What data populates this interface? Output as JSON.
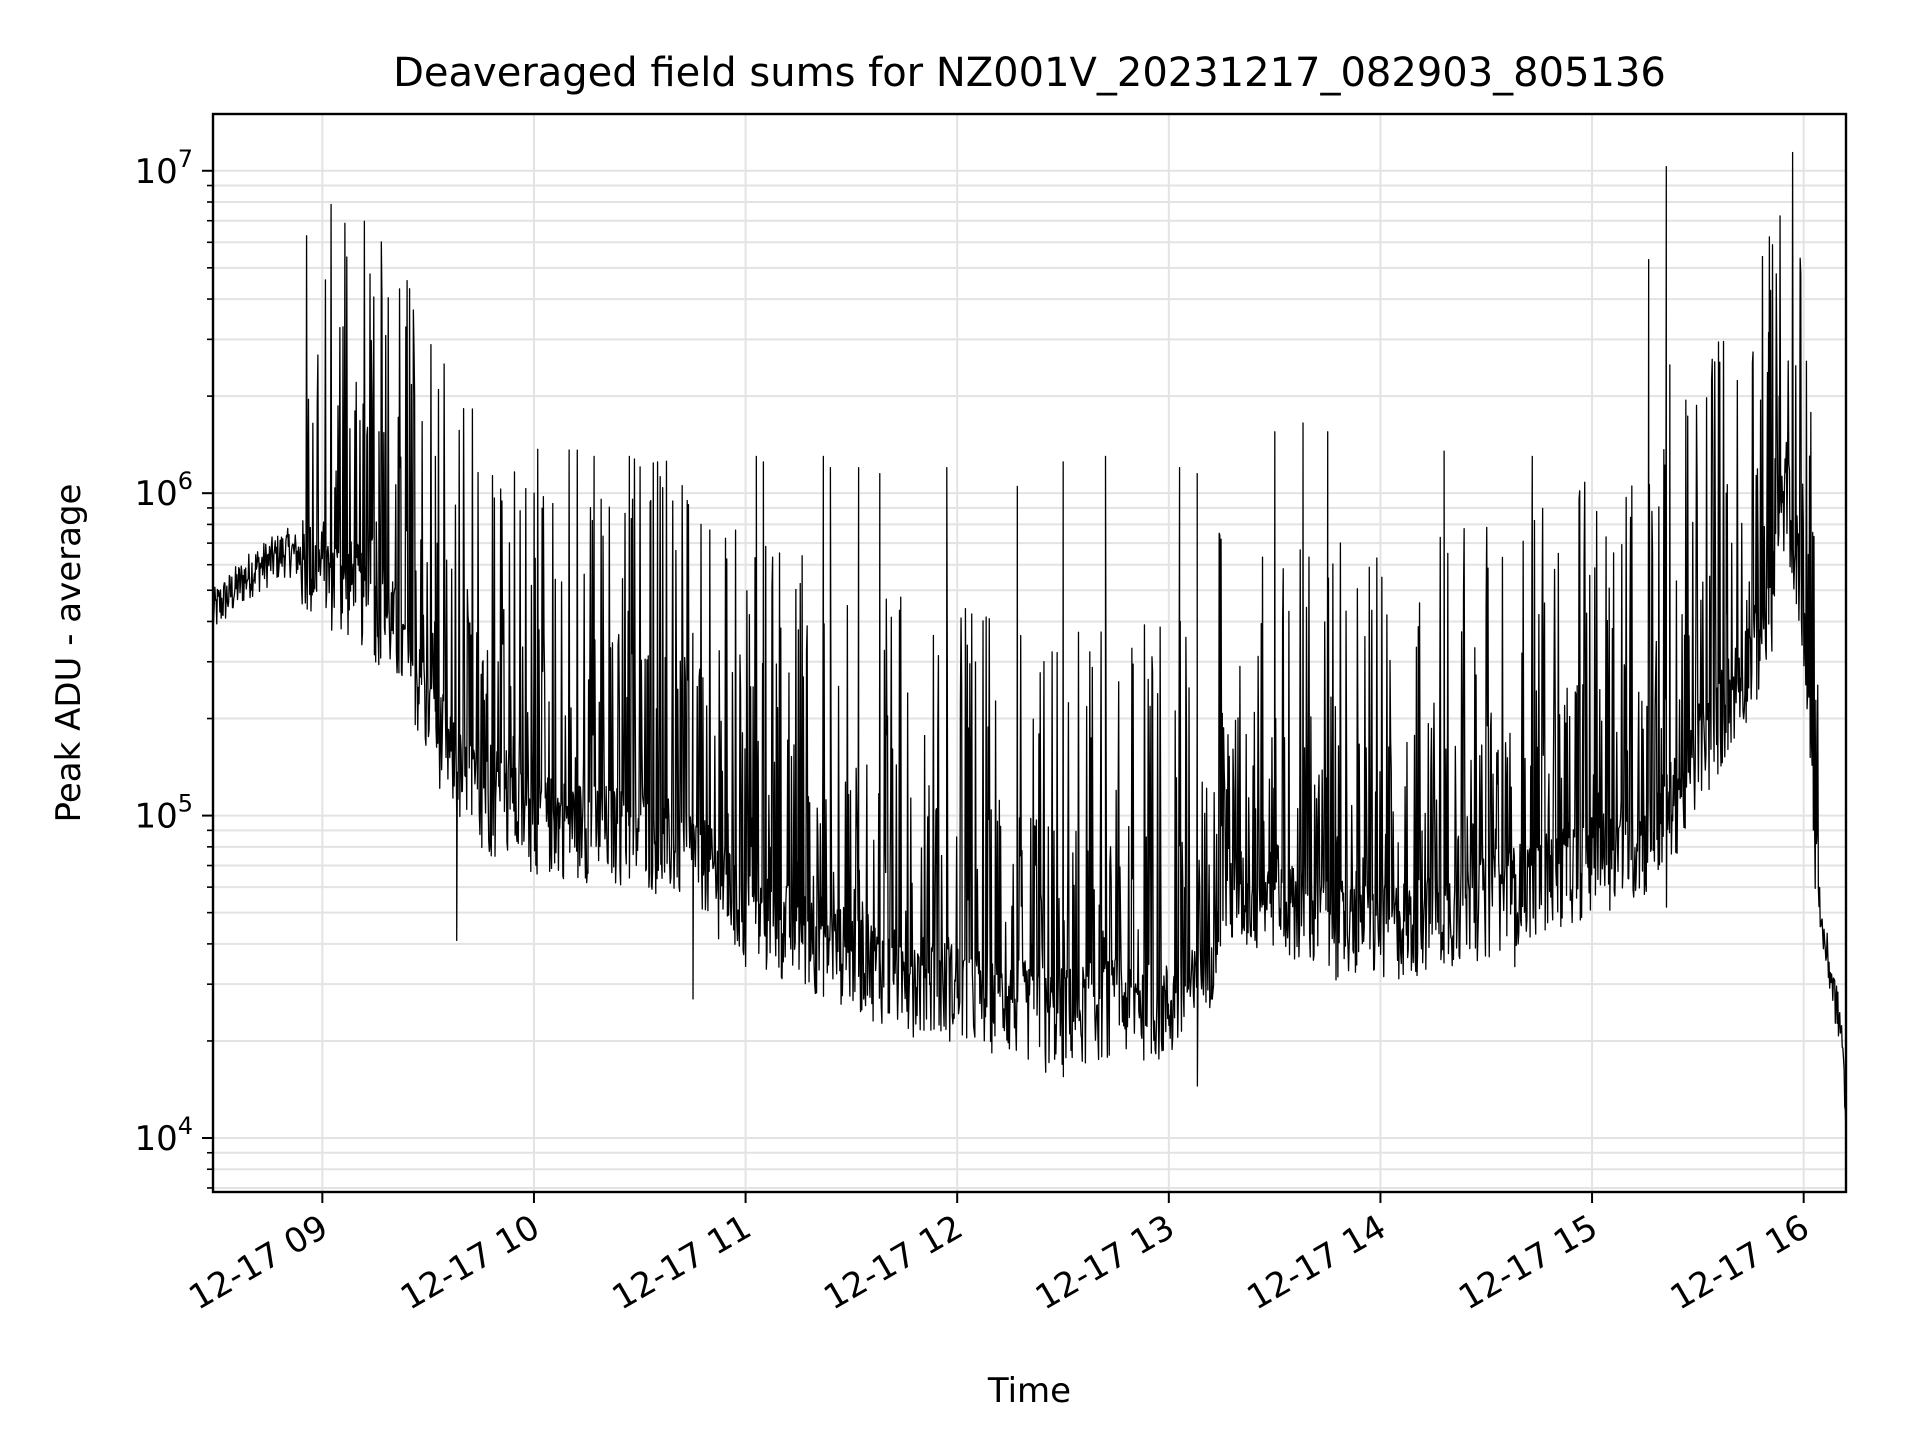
{
  "chart_data": {
    "type": "line",
    "title": "Deaveraged field sums for NZ001V_20231217_082903_805136",
    "xlabel": "Time",
    "ylabel": "Peak ADU - average",
    "yscale": "log",
    "ylim": [
      6800,
      15000000
    ],
    "xlim": [
      "2023-12-17 08:29",
      "2023-12-17 16:12"
    ],
    "grid": true,
    "line_color": "#000000",
    "x_ticks": [
      {
        "value": "2023-12-17 09:00",
        "label": "12-17 09"
      },
      {
        "value": "2023-12-17 10:00",
        "label": "12-17 10"
      },
      {
        "value": "2023-12-17 11:00",
        "label": "12-17 11"
      },
      {
        "value": "2023-12-17 12:00",
        "label": "12-17 12"
      },
      {
        "value": "2023-12-17 13:00",
        "label": "12-17 13"
      },
      {
        "value": "2023-12-17 14:00",
        "label": "12-17 14"
      },
      {
        "value": "2023-12-17 15:00",
        "label": "12-17 15"
      },
      {
        "value": "2023-12-17 16:00",
        "label": "12-17 16"
      }
    ],
    "y_ticks": [
      {
        "value": 10000,
        "base": "10",
        "exp": "4"
      },
      {
        "value": 100000,
        "base": "10",
        "exp": "5"
      },
      {
        "value": 1000000,
        "base": "10",
        "exp": "6"
      },
      {
        "value": 10000000,
        "base": "10",
        "exp": "7"
      }
    ],
    "series": [
      {
        "baseline": [
          [
            "2023-12-17 08:29",
            420000
          ],
          [
            "2023-12-17 08:40",
            560000
          ],
          [
            "2023-12-17 08:50",
            650000
          ],
          [
            "2023-12-17 09:00",
            580000
          ],
          [
            "2023-12-17 09:10",
            520000
          ],
          [
            "2023-12-17 09:20",
            400000
          ],
          [
            "2023-12-17 09:30",
            220000
          ],
          [
            "2023-12-17 09:40",
            130000
          ],
          [
            "2023-12-17 09:50",
            110000
          ],
          [
            "2023-12-17 10:00",
            100000
          ],
          [
            "2023-12-17 10:15",
            95000
          ],
          [
            "2023-12-17 10:30",
            90000
          ],
          [
            "2023-12-17 10:45",
            80000
          ],
          [
            "2023-12-17 11:00",
            50000
          ],
          [
            "2023-12-17 11:15",
            45000
          ],
          [
            "2023-12-17 11:30",
            38000
          ],
          [
            "2023-12-17 11:45",
            32000
          ],
          [
            "2023-12-17 12:00",
            30000
          ],
          [
            "2023-12-17 12:15",
            27000
          ],
          [
            "2023-12-17 12:30",
            25000
          ],
          [
            "2023-12-17 12:45",
            27000
          ],
          [
            "2023-12-17 13:00",
            26000
          ],
          [
            "2023-12-17 13:10",
            30000
          ],
          [
            "2023-12-17 13:15",
            60000
          ],
          [
            "2023-12-17 13:30",
            55000
          ],
          [
            "2023-12-17 13:45",
            48000
          ],
          [
            "2023-12-17 14:00",
            45000
          ],
          [
            "2023-12-17 14:15",
            50000
          ],
          [
            "2023-12-17 14:30",
            55000
          ],
          [
            "2023-12-17 14:45",
            65000
          ],
          [
            "2023-12-17 15:00",
            75000
          ],
          [
            "2023-12-17 15:15",
            85000
          ],
          [
            "2023-12-17 15:25",
            120000
          ],
          [
            "2023-12-17 15:40",
            250000
          ],
          [
            "2023-12-17 15:50",
            400000
          ],
          [
            "2023-12-17 15:55",
            1100000
          ],
          [
            "2023-12-17 15:59",
            550000
          ],
          [
            "2023-12-17 16:02",
            150000
          ],
          [
            "2023-12-17 16:05",
            45000
          ],
          [
            "2023-12-17 16:08",
            30000
          ],
          [
            "2023-12-17 16:11",
            20000
          ],
          [
            "2023-12-17 16:12",
            9500
          ]
        ],
        "spikes": [
          [
            "2023-12-17 09:14",
            1950000
          ],
          [
            "2023-12-17 09:16",
            1550000
          ],
          [
            "2023-12-17 09:22",
            1200000
          ],
          [
            "2023-12-17 09:32",
            1300000
          ],
          [
            "2023-12-17 10:00",
            1000000
          ],
          [
            "2023-12-17 10:17",
            1300000
          ],
          [
            "2023-12-17 10:27",
            1300000
          ],
          [
            "2023-12-17 10:35",
            1250000
          ],
          [
            "2023-12-17 11:03",
            1300000
          ],
          [
            "2023-12-17 11:05",
            1250000
          ],
          [
            "2023-12-17 11:22",
            1300000
          ],
          [
            "2023-12-17 11:24",
            1200000
          ],
          [
            "2023-12-17 11:32",
            1200000
          ],
          [
            "2023-12-17 11:38",
            1150000
          ],
          [
            "2023-12-17 11:57",
            1200000
          ],
          [
            "2023-12-17 12:17",
            1050000
          ],
          [
            "2023-12-17 12:30",
            1250000
          ],
          [
            "2023-12-17 12:42",
            1300000
          ],
          [
            "2023-12-17 13:03",
            1200000
          ],
          [
            "2023-12-17 13:08",
            1150000
          ],
          [
            "2023-12-17 13:30",
            1550000
          ],
          [
            "2023-12-17 13:38",
            1650000
          ],
          [
            "2023-12-17 13:45",
            1550000
          ],
          [
            "2023-12-17 14:18",
            1350000
          ],
          [
            "2023-12-17 14:43",
            1300000
          ],
          [
            "2023-12-17 15:16",
            5300000
          ],
          [
            "2023-12-17 15:21",
            10300000
          ],
          [
            "2023-12-17 15:22",
            2500000
          ],
          [
            "2023-12-17 15:38",
            1000000
          ],
          [
            "2023-12-17 15:50",
            3150000
          ],
          [
            "2023-12-17 15:53",
            2000000
          ]
        ],
        "dips": [
          [
            "2023-12-17 09:38",
            41000
          ],
          [
            "2023-12-17 10:45",
            27000
          ],
          [
            "2023-12-17 12:25",
            16000
          ],
          [
            "2023-12-17 12:30",
            15500
          ],
          [
            "2023-12-17 13:08",
            14500
          ],
          [
            "2023-12-17 14:38",
            34000
          ],
          [
            "2023-12-17 15:21",
            52000
          ]
        ]
      }
    ]
  }
}
